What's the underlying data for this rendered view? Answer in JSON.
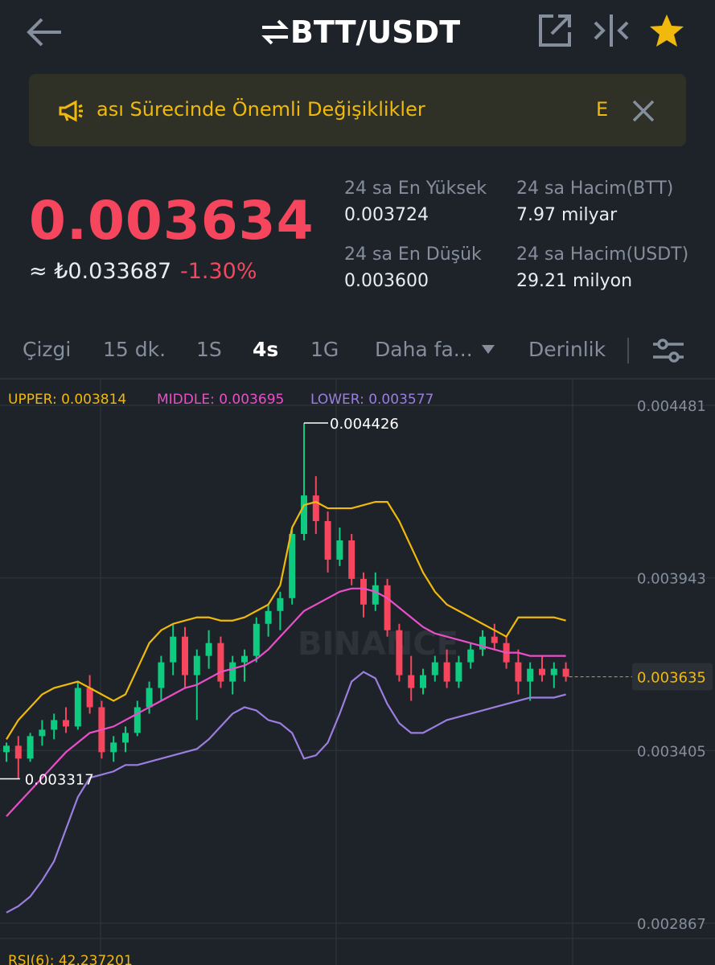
{
  "header": {
    "title": "BTT/USDT"
  },
  "banner": {
    "text": "ası Sürecinde Önemli Değişiklikler",
    "tail": "E"
  },
  "price": {
    "last": "0.003634",
    "fiat": "≈ ₺0.033687",
    "change": "-1.30%"
  },
  "stats": [
    {
      "label": "24 sa En Yüksek",
      "value": "0.003724"
    },
    {
      "label": "24 sa Hacim(BTT)",
      "value": "7.97 milyar"
    },
    {
      "label": "24 sa En Düşük",
      "value": "0.003600"
    },
    {
      "label": "24 sa Hacim(USDT)",
      "value": "29.21 milyon"
    }
  ],
  "tabs": [
    "Çizgi",
    "15 dk.",
    "1S",
    "4s",
    "1G",
    "Daha fa...",
    "Derinlik"
  ],
  "chart_data": {
    "type": "candlestick",
    "up_color": "#0ecb81",
    "down_color": "#f6465d",
    "ylim": [
      0.002867,
      0.004481
    ],
    "yticks": [
      0.004481,
      0.003943,
      0.003405,
      0.002867
    ],
    "grid": true,
    "watermark": "BINANCE",
    "open": [
      0.0034,
      0.00342,
      0.00338,
      0.00345,
      0.00347,
      0.0035,
      0.00348,
      0.0036,
      0.00354,
      0.0034,
      0.00343,
      0.00346,
      0.00354,
      0.0036,
      0.00368,
      0.00376,
      0.00364,
      0.0037,
      0.00374,
      0.00362,
      0.00368,
      0.0037,
      0.0038,
      0.00384,
      0.00388,
      0.00408,
      0.0042,
      0.00412,
      0.004,
      0.00406,
      0.00394,
      0.00386,
      0.00392,
      0.00378,
      0.00364,
      0.0036,
      0.00364,
      0.00368,
      0.00362,
      0.00368,
      0.00372,
      0.00376,
      0.00374,
      0.00368,
      0.00362,
      0.00366,
      0.00364,
      0.00366
    ],
    "high": [
      0.00343,
      0.00345,
      0.00346,
      0.0035,
      0.00352,
      0.00354,
      0.00362,
      0.00364,
      0.00356,
      0.00345,
      0.00348,
      0.00356,
      0.00362,
      0.0037,
      0.0038,
      0.00379,
      0.00372,
      0.00378,
      0.00376,
      0.0037,
      0.00372,
      0.00382,
      0.00386,
      0.0039,
      0.0041,
      0.004426,
      0.00426,
      0.00415,
      0.0041,
      0.00408,
      0.00396,
      0.00396,
      0.00394,
      0.0038,
      0.0037,
      0.00366,
      0.0037,
      0.00372,
      0.0037,
      0.00374,
      0.00378,
      0.0038,
      0.00376,
      0.00372,
      0.00368,
      0.0037,
      0.00368,
      0.00368
    ],
    "low": [
      0.00337,
      0.003317,
      0.00337,
      0.00342,
      0.00344,
      0.00346,
      0.00347,
      0.00352,
      0.00338,
      0.00337,
      0.0034,
      0.00345,
      0.00352,
      0.00356,
      0.00364,
      0.0036,
      0.0035,
      0.00366,
      0.0036,
      0.00358,
      0.00362,
      0.00368,
      0.00376,
      0.00378,
      0.00386,
      0.00406,
      0.00408,
      0.00396,
      0.00398,
      0.00392,
      0.00382,
      0.00384,
      0.00376,
      0.00362,
      0.00356,
      0.00358,
      0.00362,
      0.0036,
      0.0036,
      0.00366,
      0.0037,
      0.00372,
      0.00366,
      0.00358,
      0.00356,
      0.00362,
      0.0036,
      0.00362
    ],
    "close": [
      0.00342,
      0.00338,
      0.00345,
      0.00347,
      0.0035,
      0.00348,
      0.0036,
      0.00354,
      0.0034,
      0.00343,
      0.00346,
      0.00354,
      0.0036,
      0.00368,
      0.00376,
      0.00364,
      0.0037,
      0.00374,
      0.00362,
      0.00368,
      0.0037,
      0.0038,
      0.00384,
      0.00388,
      0.00408,
      0.0042,
      0.00412,
      0.004,
      0.00406,
      0.00394,
      0.00386,
      0.00392,
      0.00378,
      0.00364,
      0.0036,
      0.00364,
      0.00368,
      0.00362,
      0.00368,
      0.00372,
      0.00376,
      0.00374,
      0.00368,
      0.00362,
      0.00366,
      0.00364,
      0.00366,
      0.003635
    ],
    "series": [
      {
        "name": "UPPER: 0.003814",
        "color": "#f0b90b",
        "values": [
          0.00344,
          0.0035,
          0.00354,
          0.00358,
          0.0036,
          0.00361,
          0.00362,
          0.0036,
          0.00358,
          0.00356,
          0.00358,
          0.00366,
          0.00374,
          0.00378,
          0.0038,
          0.00381,
          0.00382,
          0.00382,
          0.00381,
          0.00381,
          0.00382,
          0.00384,
          0.00386,
          0.00392,
          0.0041,
          0.00417,
          0.00418,
          0.00416,
          0.00416,
          0.00416,
          0.00417,
          0.00418,
          0.00418,
          0.00412,
          0.00404,
          0.00396,
          0.0039,
          0.00386,
          0.00384,
          0.00382,
          0.0038,
          0.00378,
          0.00376,
          0.00382,
          0.00382,
          0.00382,
          0.00382,
          0.00381
        ]
      },
      {
        "name": "MIDDLE: 0.003695",
        "color": "#e84fc8",
        "values": [
          0.0032,
          0.00324,
          0.00328,
          0.00332,
          0.00336,
          0.0034,
          0.00343,
          0.00346,
          0.00347,
          0.00348,
          0.0035,
          0.00352,
          0.00354,
          0.00356,
          0.00358,
          0.0036,
          0.00361,
          0.00363,
          0.00365,
          0.00366,
          0.00367,
          0.00369,
          0.00372,
          0.00376,
          0.0038,
          0.00384,
          0.00386,
          0.00388,
          0.0039,
          0.00391,
          0.00391,
          0.0039,
          0.00388,
          0.00385,
          0.00382,
          0.00379,
          0.00377,
          0.00376,
          0.00375,
          0.00374,
          0.00373,
          0.00372,
          0.00371,
          0.00371,
          0.0037,
          0.0037,
          0.0037,
          0.0037
        ]
      },
      {
        "name": "LOWER: 0.003577",
        "color": "#9b7ee0",
        "values": [
          0.0029,
          0.00292,
          0.00295,
          0.003,
          0.00306,
          0.00316,
          0.00326,
          0.00332,
          0.00333,
          0.00334,
          0.00336,
          0.00336,
          0.00337,
          0.00338,
          0.00339,
          0.0034,
          0.00341,
          0.00344,
          0.00348,
          0.00352,
          0.00354,
          0.00353,
          0.0035,
          0.00349,
          0.00346,
          0.00338,
          0.00339,
          0.00343,
          0.00352,
          0.00362,
          0.00365,
          0.00363,
          0.00355,
          0.00349,
          0.00346,
          0.00346,
          0.00348,
          0.0035,
          0.00351,
          0.00352,
          0.00353,
          0.00354,
          0.00355,
          0.00356,
          0.00357,
          0.00357,
          0.00357,
          0.00358
        ]
      }
    ],
    "rsi_label": "RSI(6): 42.237201"
  }
}
